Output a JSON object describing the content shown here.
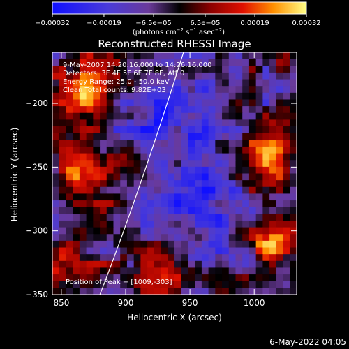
{
  "chart_data": {
    "type": "heatmap",
    "title": "Reconstructed RHESSI Image",
    "xlabel": "Heliocentric X (arcsec)",
    "ylabel": "Heliocentric Y (arcsec)",
    "xlim": [
      843,
      1033
    ],
    "ylim": [
      -350,
      -160
    ],
    "x_ticks": [
      850,
      900,
      950,
      1000
    ],
    "x_tick_labels": [
      "850",
      "900",
      "950",
      "1000"
    ],
    "y_ticks": [
      -200,
      -250,
      -300,
      -350
    ],
    "y_tick_labels": [
      "−200",
      "−250",
      "−300",
      "−350"
    ],
    "colorbar": {
      "range": [
        -0.00032,
        0.00032
      ],
      "ticks": [
        -0.00032,
        -0.00019,
        -6.5e-05,
        6.5e-05,
        0.00019,
        0.00032
      ],
      "tick_labels": [
        "−0.00032",
        "−0.00019",
        "−6.5e−05",
        "6.5e−05",
        "0.00019",
        "0.00032"
      ],
      "unit_parts": [
        "(photons cm",
        "−2",
        " s",
        "−1",
        " asec",
        "−2",
        ")"
      ],
      "colormap": "rhessi-blue-red-yellow"
    },
    "annotations": {
      "time_range": "9-May-2007 14:20:16.000 to 14:26:16.000",
      "detectors": "Detectors: 3F 4F 5F 6F 7F 8F, Att 0",
      "energy": "Energy Range: 25.0 - 50.0 keV",
      "clean": "Clean     Total counts: 9.82E+03",
      "peak": "Position of Peak = [1009,-303]"
    },
    "limb_curve": [
      [
        880,
        -350
      ],
      [
        900,
        -298
      ],
      [
        920,
        -240
      ],
      [
        945,
        -160
      ]
    ],
    "peak_position": [
      1009,
      -303
    ]
  },
  "footer": {
    "date": "6-May-2022 04:05"
  }
}
